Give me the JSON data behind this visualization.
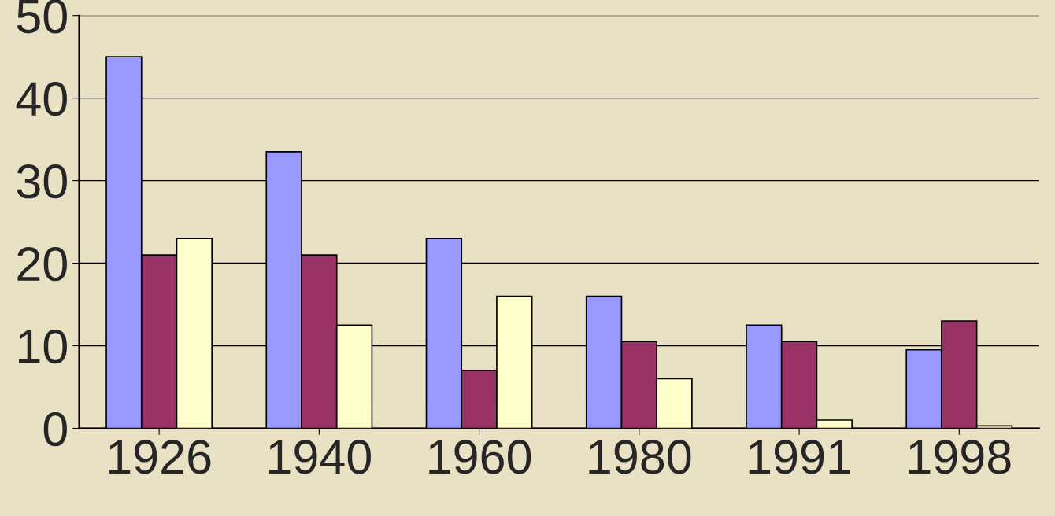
{
  "chart_data": {
    "type": "bar",
    "categories": [
      "1926",
      "1940",
      "1960",
      "1980",
      "1991",
      "1998"
    ],
    "series": [
      {
        "color": "#9999ff",
        "values": [
          45,
          33.5,
          23,
          16,
          12.5,
          9.5
        ]
      },
      {
        "color": "#993366",
        "values": [
          21,
          21,
          7,
          10.5,
          10.5,
          13
        ]
      },
      {
        "color": "#ffffcc",
        "values": [
          23,
          12.5,
          16,
          6,
          1,
          0.3
        ]
      }
    ],
    "ylim": [
      0,
      50
    ],
    "yticks": [
      0,
      10,
      20,
      30,
      40,
      50
    ],
    "grid": "y",
    "legend": false
  }
}
